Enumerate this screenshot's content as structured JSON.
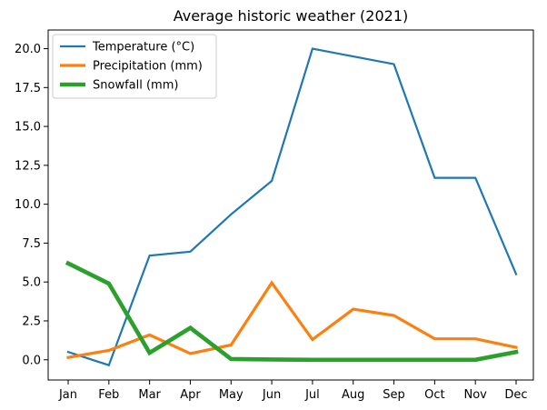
{
  "chart_data": {
    "type": "line",
    "title": "Average historic weather (2021)",
    "xlabel": "",
    "ylabel": "",
    "categories": [
      "Jan",
      "Feb",
      "Mar",
      "Apr",
      "May",
      "Jun",
      "Jul",
      "Aug",
      "Sep",
      "Oct",
      "Nov",
      "Dec"
    ],
    "yticks": [
      "0.0",
      "2.5",
      "5.0",
      "7.5",
      "10.0",
      "12.5",
      "15.0",
      "17.5",
      "20.0"
    ],
    "ylim": [
      -1.3,
      21.2
    ],
    "grid": false,
    "legend_position": "top-left",
    "series": [
      {
        "name": "Temperature (°C)",
        "color": "#1f77b4",
        "values": [
          0.5,
          -0.35,
          6.7,
          6.95,
          9.35,
          11.5,
          20.0,
          19.5,
          19.0,
          11.7,
          11.7,
          5.5
        ]
      },
      {
        "name": "Precipitation (mm)",
        "color": "#ff7f0e",
        "values": [
          0.15,
          0.6,
          1.6,
          0.4,
          0.95,
          4.95,
          1.3,
          3.25,
          2.85,
          1.35,
          1.35,
          0.8
        ]
      },
      {
        "name": "Snowfall (mm)",
        "color": "#2ca02c",
        "values": [
          6.2,
          4.9,
          0.45,
          2.05,
          0.05,
          0.02,
          0.0,
          0.0,
          0.0,
          0.0,
          0.0,
          0.5
        ]
      }
    ]
  }
}
